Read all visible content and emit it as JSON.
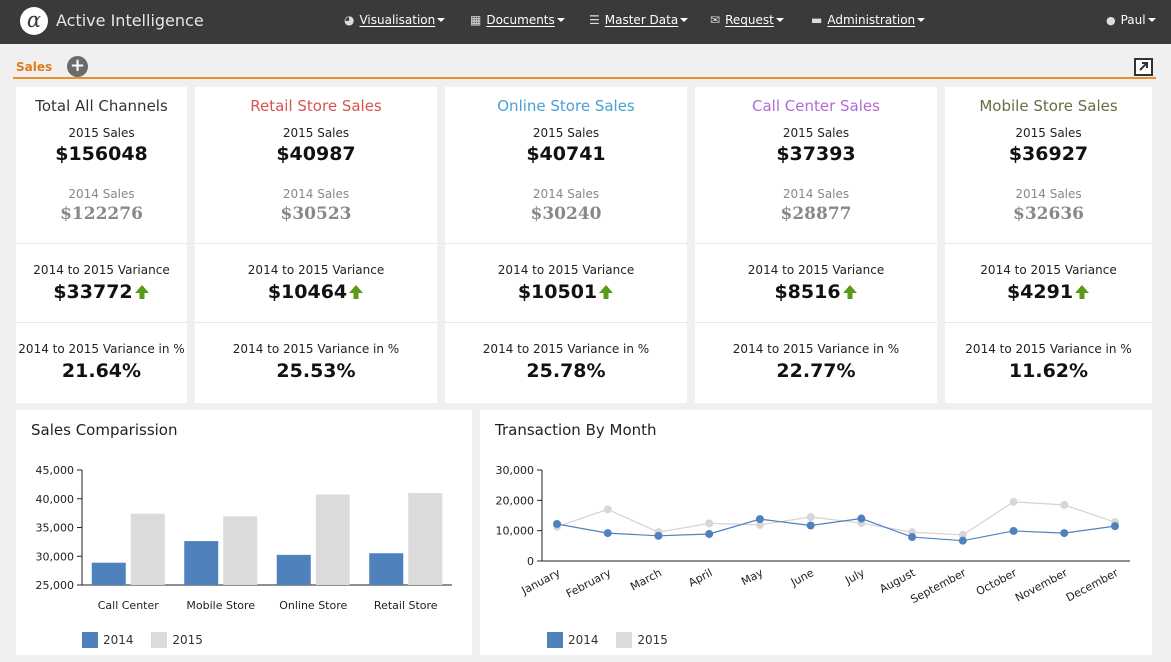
{
  "app": {
    "logo_glyph": "α",
    "name": "Active Intelligence"
  },
  "nav": [
    {
      "icon": "dashboard-icon",
      "glyph": "◕",
      "label": "Visualisation"
    },
    {
      "icon": "documents-icon",
      "glyph": "▦",
      "label": "Documents"
    },
    {
      "icon": "database-icon",
      "glyph": "☰",
      "label": "Master Data"
    },
    {
      "icon": "envelope-icon",
      "glyph": "✉",
      "label": "Request"
    },
    {
      "icon": "briefcase-icon",
      "glyph": "▬",
      "label": "Administration"
    }
  ],
  "user": {
    "icon": "user-icon",
    "glyph": "👤",
    "name": "Paul"
  },
  "tabs": {
    "active": "Sales",
    "add_glyph": "+"
  },
  "colors": {
    "accent": "#e8912e",
    "retail": "#d9534f",
    "online": "#4a9fd5",
    "callcenter": "#b36ad6",
    "mobile": "#6b6b45",
    "series2014": "#4f81bd",
    "series2015": "#dcdada",
    "up": "#5a9a1a"
  },
  "cards": [
    {
      "title": "Total All Channels",
      "label_2015": "2015 Sales",
      "value_2015": "$156048",
      "label_2014": "2014 Sales",
      "value_2014": "$122276",
      "variance_label": "2014 to 2015 Variance",
      "variance": "$33772",
      "variance_pct_label": "2014 to 2015 Variance in %",
      "variance_pct": "21.64%"
    },
    {
      "title": "Retail Store Sales",
      "label_2015": "2015 Sales",
      "value_2015": "$40987",
      "label_2014": "2014 Sales",
      "value_2014": "$30523",
      "variance_label": "2014 to 2015 Variance",
      "variance": "$10464",
      "variance_pct_label": "2014 to 2015 Variance in %",
      "variance_pct": "25.53%"
    },
    {
      "title": "Online Store Sales",
      "label_2015": "2015 Sales",
      "value_2015": "$40741",
      "label_2014": "2014 Sales",
      "value_2014": "$30240",
      "variance_label": "2014 to 2015 Variance",
      "variance": "$10501",
      "variance_pct_label": "2014 to 2015 Variance in %",
      "variance_pct": "25.78%"
    },
    {
      "title": "Call Center Sales",
      "label_2015": "2015 Sales",
      "value_2015": "$37393",
      "label_2014": "2014 Sales",
      "value_2014": "$28877",
      "variance_label": "2014 to 2015 Variance",
      "variance": "$8516",
      "variance_pct_label": "2014 to 2015 Variance in %",
      "variance_pct": "22.77%"
    },
    {
      "title": "Mobile Store Sales",
      "label_2015": "2015 Sales",
      "value_2015": "$36927",
      "label_2014": "2014 Sales",
      "value_2014": "$32636",
      "variance_label": "2014 to 2015 Variance",
      "variance": "$4291",
      "variance_pct_label": "2014 to 2015 Variance in %",
      "variance_pct": "11.62%"
    }
  ],
  "panels": {
    "comparison_title": "Sales Comparission",
    "transactions_title": "Transaction By Month"
  },
  "chart_data": [
    {
      "type": "bar",
      "title": "Sales Comparission",
      "categories": [
        "Call Center",
        "Mobile Store",
        "Online Store",
        "Retail Store"
      ],
      "series": [
        {
          "name": "2014",
          "values": [
            28877,
            32636,
            30240,
            30523
          ]
        },
        {
          "name": "2015",
          "values": [
            37393,
            36927,
            40741,
            40987
          ]
        }
      ],
      "ylim": [
        25000,
        45000
      ],
      "yticks": [
        "25,000",
        "30,000",
        "35,000",
        "40,000",
        "45,000"
      ],
      "legend": "bottom-left",
      "grid": false
    },
    {
      "type": "line",
      "title": "Transaction By Month",
      "categories": [
        "January",
        "February",
        "March",
        "April",
        "May",
        "June",
        "July",
        "August",
        "September",
        "October",
        "November",
        "December"
      ],
      "series": [
        {
          "name": "2014",
          "values": [
            12200,
            9200,
            8300,
            8900,
            13800,
            11700,
            14000,
            7900,
            6700,
            9900,
            9200,
            11500
          ]
        },
        {
          "name": "2015",
          "values": [
            11300,
            17000,
            9500,
            12400,
            11900,
            14500,
            12500,
            9500,
            8600,
            19500,
            18500,
            12800
          ]
        }
      ],
      "ylim": [
        0,
        30000
      ],
      "yticks": [
        "0",
        "10,000",
        "20,000",
        "30,000"
      ],
      "legend": "bottom-left",
      "grid": false
    }
  ]
}
